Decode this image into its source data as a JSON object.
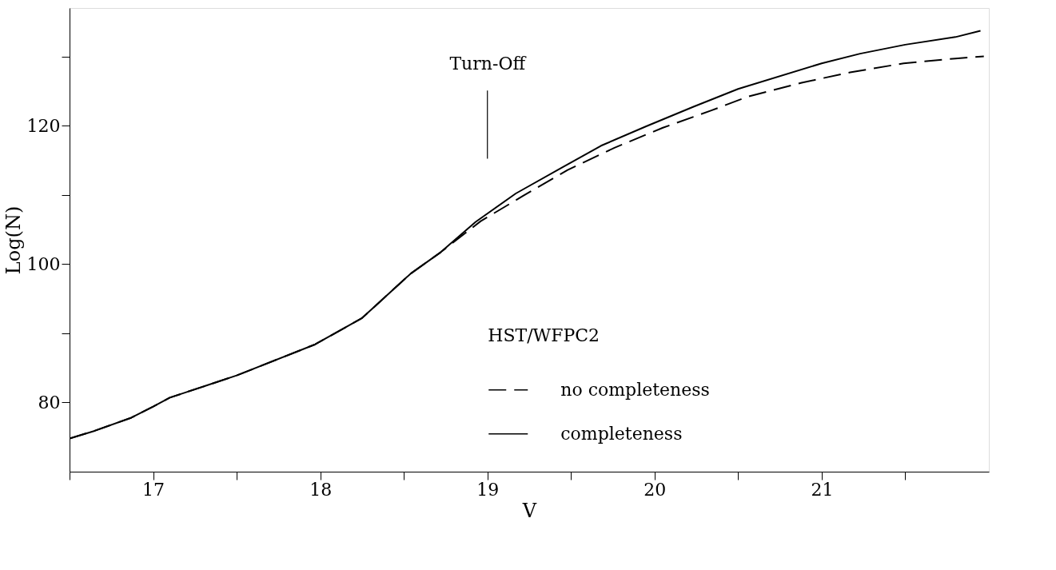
{
  "chart_data": {
    "type": "line",
    "xlabel": "V",
    "ylabel": "Log(N)",
    "legend_title": "HST/WFPC2",
    "xlim": [
      16.5,
      22
    ],
    "ylim": [
      70,
      137
    ],
    "xticks": [
      {
        "value": 16.5,
        "label": null
      },
      17,
      {
        "value": 17.5,
        "label": null
      },
      18,
      {
        "value": 18.5,
        "label": null
      },
      19,
      {
        "value": 19.5,
        "label": null
      },
      20,
      {
        "value": 20.5,
        "label": null
      },
      21,
      {
        "value": 21.5,
        "label": null
      }
    ],
    "yticks": [
      80,
      {
        "value": 90,
        "label": null
      },
      100,
      {
        "value": 110,
        "label": null
      },
      120,
      {
        "value": 130,
        "label": null
      }
    ],
    "grid": false,
    "legend": "bottom right",
    "marker": "none",
    "ref_lines": [
      {
        "axis": "x",
        "value": 19,
        "label": "Turn-Off"
      }
    ],
    "series": [
      {
        "name": "no completeness",
        "color": "#000000",
        "line_style": "dashed",
        "x": [
          16.5,
          16.65,
          16.87,
          17.0,
          17.1,
          17.5,
          17.97,
          18.25,
          18.35,
          18.54,
          18.72,
          18.96,
          19.21,
          19.48,
          19.76,
          20.05,
          20.34,
          20.56,
          20.88,
          21.17,
          21.49,
          21.8,
          21.97
        ],
        "values": [
          74.8,
          75.9,
          77.8,
          79.4,
          80.7,
          83.9,
          88.4,
          92.2,
          94.4,
          98.6,
          101.7,
          106.2,
          109.8,
          113.6,
          116.8,
          119.7,
          122.2,
          124.2,
          126.2,
          127.7,
          129.0,
          129.7,
          130.0
        ]
      },
      {
        "name": "completeness",
        "color": "#000000",
        "line_style": "solid",
        "x": [
          16.5,
          16.65,
          16.87,
          17.0,
          17.1,
          17.5,
          17.97,
          18.25,
          18.35,
          18.54,
          18.72,
          18.93,
          19.17,
          19.45,
          19.68,
          19.95,
          20.23,
          20.5,
          21.0,
          21.23,
          21.5,
          21.8,
          21.95
        ],
        "values": [
          74.8,
          75.9,
          77.8,
          79.4,
          80.7,
          83.9,
          88.4,
          92.2,
          94.4,
          98.6,
          101.7,
          106.1,
          110.2,
          114.0,
          117.1,
          119.9,
          122.7,
          125.3,
          129.0,
          130.4,
          131.7,
          132.8,
          133.7
        ]
      }
    ]
  }
}
